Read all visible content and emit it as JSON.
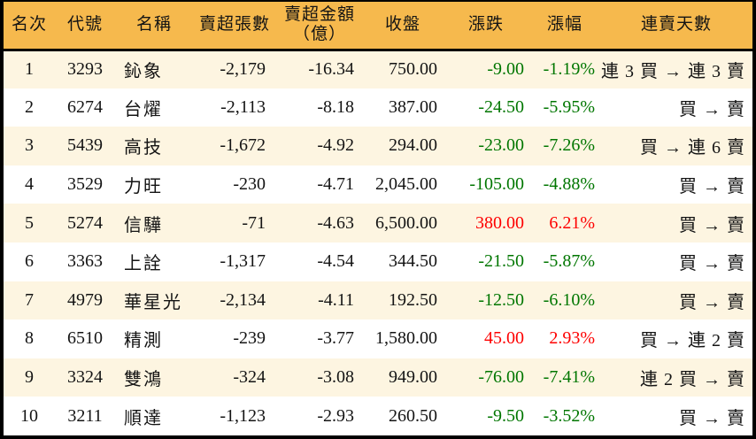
{
  "colors": {
    "header_bg": "#f6b94d",
    "row_alt_bg": "#fdf5e1",
    "row_bg": "#ffffff",
    "border": "#000000",
    "text": "#141414",
    "up": "#fe0000",
    "down": "#007600"
  },
  "chart_data": {
    "type": "table",
    "columns": [
      "名次",
      "代號",
      "名稱",
      "賣超張數",
      "賣超金額\n（億）",
      "收盤",
      "漲跌",
      "漲幅",
      "連賣天數"
    ],
    "column_keys": [
      "rank",
      "code",
      "name",
      "sell_volume",
      "sell_amount",
      "close",
      "change",
      "change_pct",
      "streak"
    ],
    "rows": [
      {
        "rank": "1",
        "code": "3293",
        "name": "鈊象",
        "sell_volume": "-2,179",
        "sell_amount": "-16.34",
        "close": "750.00",
        "change": "-9.00",
        "change_pct": "-1.19%",
        "streak": "連 3 買 → 連 3 賣",
        "direction": "down"
      },
      {
        "rank": "2",
        "code": "6274",
        "name": "台燿",
        "sell_volume": "-2,113",
        "sell_amount": "-8.18",
        "close": "387.00",
        "change": "-24.50",
        "change_pct": "-5.95%",
        "streak": "買 → 賣",
        "direction": "down"
      },
      {
        "rank": "3",
        "code": "5439",
        "name": "高技",
        "sell_volume": "-1,672",
        "sell_amount": "-4.92",
        "close": "294.00",
        "change": "-23.00",
        "change_pct": "-7.26%",
        "streak": "買 → 連 6 賣",
        "direction": "down"
      },
      {
        "rank": "4",
        "code": "3529",
        "name": "力旺",
        "sell_volume": "-230",
        "sell_amount": "-4.71",
        "close": "2,045.00",
        "change": "-105.00",
        "change_pct": "-4.88%",
        "streak": "買 → 賣",
        "direction": "down"
      },
      {
        "rank": "5",
        "code": "5274",
        "name": "信驊",
        "sell_volume": "-71",
        "sell_amount": "-4.63",
        "close": "6,500.00",
        "change": "380.00",
        "change_pct": "6.21%",
        "streak": "買 → 賣",
        "direction": "up"
      },
      {
        "rank": "6",
        "code": "3363",
        "name": "上詮",
        "sell_volume": "-1,317",
        "sell_amount": "-4.54",
        "close": "344.50",
        "change": "-21.50",
        "change_pct": "-5.87%",
        "streak": "買 → 賣",
        "direction": "down"
      },
      {
        "rank": "7",
        "code": "4979",
        "name": "華星光",
        "sell_volume": "-2,134",
        "sell_amount": "-4.11",
        "close": "192.50",
        "change": "-12.50",
        "change_pct": "-6.10%",
        "streak": "買 → 賣",
        "direction": "down"
      },
      {
        "rank": "8",
        "code": "6510",
        "name": "精測",
        "sell_volume": "-239",
        "sell_amount": "-3.77",
        "close": "1,580.00",
        "change": "45.00",
        "change_pct": "2.93%",
        "streak": "買 → 連 2 賣",
        "direction": "up"
      },
      {
        "rank": "9",
        "code": "3324",
        "name": "雙鴻",
        "sell_volume": "-324",
        "sell_amount": "-3.08",
        "close": "949.00",
        "change": "-76.00",
        "change_pct": "-7.41%",
        "streak": "連 2 買 → 賣",
        "direction": "down"
      },
      {
        "rank": "10",
        "code": "3211",
        "name": "順達",
        "sell_volume": "-1,123",
        "sell_amount": "-2.93",
        "close": "260.50",
        "change": "-9.50",
        "change_pct": "-3.52%",
        "streak": "買 → 賣",
        "direction": "down"
      }
    ]
  }
}
